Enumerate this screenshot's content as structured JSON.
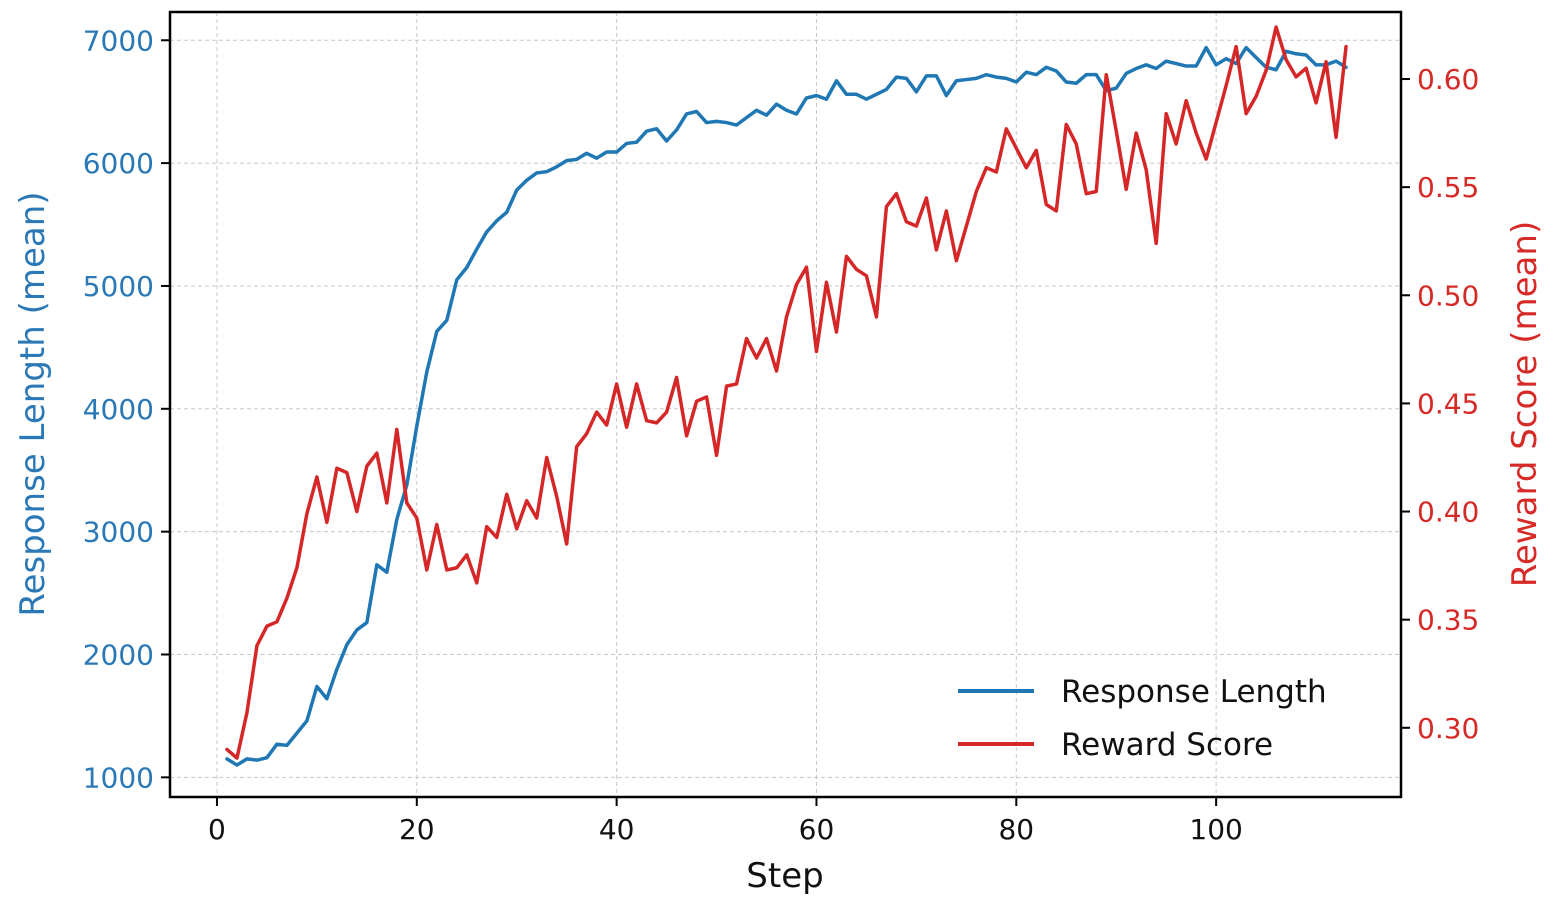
{
  "chart_data": {
    "type": "line",
    "title": "",
    "xlabel": "Step",
    "ylabel_left": "Response Length (mean)",
    "ylabel_right": "Reward Score (mean)",
    "xlim": [
      -4.7,
      118.5
    ],
    "ylim_left": [
      840,
      7230
    ],
    "ylim_right": [
      0.268,
      0.631
    ],
    "xticks": [
      0,
      20,
      40,
      60,
      80,
      100
    ],
    "yticks_left": [
      1000,
      2000,
      3000,
      4000,
      5000,
      6000,
      7000
    ],
    "yticks_right": [
      "0.30",
      "0.35",
      "0.40",
      "0.45",
      "0.50",
      "0.55",
      "0.60"
    ],
    "grid": true,
    "legend_position": "lower-right",
    "colors": {
      "left": "#2a78b6",
      "right": "#d62a27"
    },
    "series": [
      {
        "name": "Response Length",
        "axis": "left",
        "color": "#1f77b4",
        "x": [
          1,
          2,
          3,
          4,
          5,
          6,
          7,
          8,
          9,
          10,
          11,
          12,
          13,
          14,
          15,
          16,
          17,
          18,
          19,
          20,
          21,
          22,
          23,
          24,
          25,
          26,
          27,
          28,
          29,
          30,
          31,
          32,
          33,
          34,
          35,
          36,
          37,
          38,
          39,
          40,
          41,
          42,
          43,
          44,
          45,
          46,
          47,
          48,
          49,
          50,
          51,
          52,
          53,
          54,
          55,
          56,
          57,
          58,
          59,
          60,
          61,
          62,
          63,
          64,
          65,
          66,
          67,
          68,
          69,
          70,
          71,
          72,
          73,
          74,
          75,
          76,
          77,
          78,
          79,
          80,
          81,
          82,
          83,
          84,
          85,
          86,
          87,
          88,
          89,
          90,
          91,
          92,
          93,
          94,
          95,
          96,
          97,
          98,
          99,
          100,
          101,
          102,
          103,
          104,
          105,
          106,
          107,
          108,
          109,
          110,
          111,
          112,
          113
        ],
        "values": [
          1150,
          1100,
          1150,
          1140,
          1160,
          1270,
          1260,
          1360,
          1460,
          1740,
          1640,
          1880,
          2080,
          2200,
          2260,
          2730,
          2670,
          3100,
          3380,
          3860,
          4300,
          4630,
          4720,
          5050,
          5150,
          5300,
          5440,
          5530,
          5600,
          5780,
          5860,
          5920,
          5930,
          5970,
          6020,
          6030,
          6080,
          6040,
          6090,
          6090,
          6160,
          6170,
          6260,
          6280,
          6180,
          6270,
          6400,
          6420,
          6330,
          6340,
          6330,
          6310,
          6370,
          6430,
          6390,
          6480,
          6430,
          6400,
          6530,
          6550,
          6520,
          6670,
          6560,
          6560,
          6520,
          6560,
          6600,
          6700,
          6690,
          6580,
          6710,
          6710,
          6550,
          6670,
          6680,
          6690,
          6720,
          6700,
          6690,
          6660,
          6740,
          6720,
          6780,
          6750,
          6660,
          6650,
          6720,
          6720,
          6590,
          6610,
          6730,
          6770,
          6800,
          6770,
          6830,
          6810,
          6790,
          6790,
          6940,
          6800,
          6850,
          6810,
          6940,
          6860,
          6780,
          6760,
          6910,
          6890,
          6880,
          6800,
          6800,
          6830,
          6780
        ]
      },
      {
        "name": "Reward Score",
        "axis": "right",
        "color": "#d62728",
        "x": [
          1,
          2,
          3,
          4,
          5,
          6,
          7,
          8,
          9,
          10,
          11,
          12,
          13,
          14,
          15,
          16,
          17,
          18,
          19,
          20,
          21,
          22,
          23,
          24,
          25,
          26,
          27,
          28,
          29,
          30,
          31,
          32,
          33,
          34,
          35,
          36,
          37,
          38,
          39,
          40,
          41,
          42,
          43,
          44,
          45,
          46,
          47,
          48,
          49,
          50,
          51,
          52,
          53,
          54,
          55,
          56,
          57,
          58,
          59,
          60,
          61,
          62,
          63,
          64,
          65,
          66,
          67,
          68,
          69,
          70,
          71,
          72,
          73,
          74,
          75,
          76,
          77,
          78,
          79,
          80,
          81,
          82,
          83,
          84,
          85,
          86,
          87,
          88,
          89,
          90,
          91,
          92,
          93,
          94,
          95,
          96,
          97,
          98,
          99,
          100,
          101,
          102,
          103,
          104,
          105,
          106,
          107,
          108,
          109,
          110,
          111,
          112,
          113
        ],
        "values": [
          0.29,
          0.286,
          0.307,
          0.338,
          0.347,
          0.349,
          0.36,
          0.374,
          0.399,
          0.416,
          0.395,
          0.42,
          0.418,
          0.4,
          0.421,
          0.427,
          0.404,
          0.438,
          0.404,
          0.397,
          0.373,
          0.394,
          0.373,
          0.374,
          0.38,
          0.367,
          0.393,
          0.388,
          0.408,
          0.392,
          0.405,
          0.397,
          0.425,
          0.407,
          0.385,
          0.43,
          0.436,
          0.446,
          0.44,
          0.459,
          0.439,
          0.459,
          0.442,
          0.441,
          0.446,
          0.462,
          0.435,
          0.451,
          0.453,
          0.426,
          0.458,
          0.459,
          0.48,
          0.471,
          0.48,
          0.465,
          0.49,
          0.505,
          0.513,
          0.474,
          0.506,
          0.483,
          0.518,
          0.512,
          0.509,
          0.49,
          0.541,
          0.547,
          0.534,
          0.532,
          0.545,
          0.521,
          0.539,
          0.516,
          0.532,
          0.548,
          0.559,
          0.557,
          0.577,
          0.568,
          0.559,
          0.567,
          0.542,
          0.539,
          0.579,
          0.57,
          0.547,
          0.548,
          0.602,
          0.576,
          0.549,
          0.575,
          0.558,
          0.524,
          0.584,
          0.57,
          0.59,
          0.575,
          0.563,
          0.58,
          0.597,
          0.615,
          0.584,
          0.592,
          0.604,
          0.624,
          0.609,
          0.601,
          0.605,
          0.589,
          0.608,
          0.573,
          0.615
        ]
      }
    ]
  }
}
